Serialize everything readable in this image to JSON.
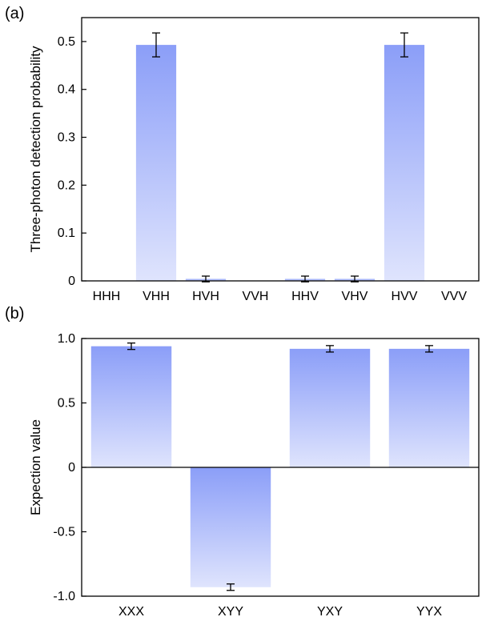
{
  "panels": [
    {
      "label": "(a)"
    },
    {
      "label": "(b)"
    }
  ],
  "colors": {
    "bar_top": "#8b9ef8",
    "bar_bottom": "#dfe4fd",
    "axis": "#000000"
  },
  "chart_data": [
    {
      "type": "bar",
      "title": "",
      "xlabel": "",
      "ylabel": "Three-photon detection probability",
      "categories": [
        "HHH",
        "VHH",
        "HVH",
        "VVH",
        "HHV",
        "VHV",
        "HVV",
        "VVV"
      ],
      "values": [
        0.0,
        0.493,
        0.004,
        0.0,
        0.004,
        0.004,
        0.493,
        0.0
      ],
      "errors": [
        0.0,
        0.025,
        0.006,
        0.0,
        0.006,
        0.006,
        0.025,
        0.0
      ],
      "ylim": [
        0,
        0.55
      ],
      "yticks": [
        0,
        0.1,
        0.2,
        0.3,
        0.4,
        0.5
      ],
      "ytick_labels": [
        "0",
        "0.1",
        "0.2",
        "0.3",
        "0.4",
        "0.5"
      ],
      "grid": false,
      "legend": "none"
    },
    {
      "type": "bar",
      "title": "",
      "xlabel": "",
      "ylabel": "Expection value",
      "categories": [
        "XXX",
        "XYY",
        "YXY",
        "YYX"
      ],
      "values": [
        0.94,
        -0.93,
        0.92,
        0.92
      ],
      "errors": [
        0.025,
        0.025,
        0.025,
        0.025
      ],
      "ylim": [
        -1.0,
        1.0
      ],
      "yticks": [
        1.0,
        0.5,
        0,
        -0.5,
        -1.0
      ],
      "ytick_labels": [
        "1.0",
        "0.5",
        "0",
        "-0.5",
        "-1.0"
      ],
      "grid": false,
      "legend": "none"
    }
  ]
}
